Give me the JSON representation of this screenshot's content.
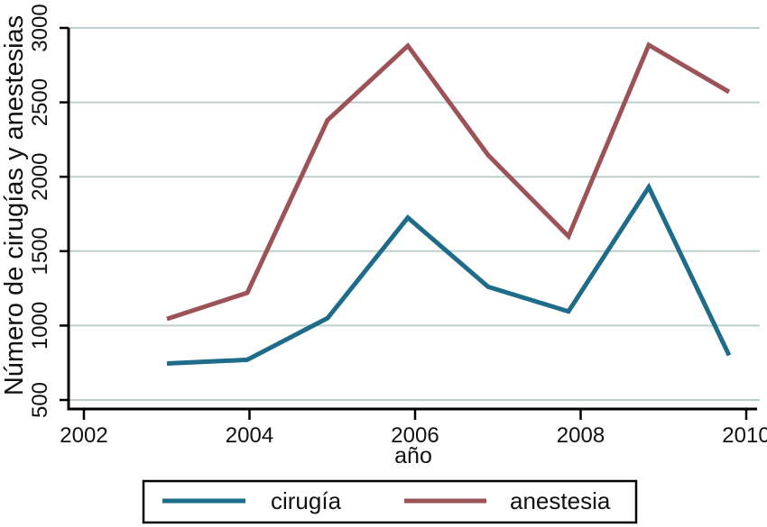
{
  "chart_data": {
    "type": "line",
    "title": "",
    "xlabel": "año",
    "ylabel": "Número de cirugías y anestesias",
    "x": [
      2003,
      2004,
      2005,
      2006,
      2007,
      2008,
      2009,
      2010
    ],
    "series": [
      {
        "name": "cirugía",
        "color": "#1f6b8a",
        "values": [
          745,
          770,
          1050,
          1725,
          1260,
          1095,
          1930,
          800
        ]
      },
      {
        "name": "anestesia",
        "color": "#9c5358",
        "values": [
          1045,
          1220,
          2380,
          2880,
          2145,
          1600,
          2885,
          2570
        ]
      }
    ],
    "x_ticks": [
      2002,
      2004,
      2006,
      2008,
      2010
    ],
    "y_ticks": [
      500,
      1000,
      1500,
      2000,
      2500,
      3000
    ],
    "xlim": [
      2002,
      2010.3
    ],
    "ylim": [
      500,
      3000
    ],
    "grid": "horizontal-gridlines",
    "legend_position": "bottom",
    "colors": {
      "gridline": "#bdcfce",
      "axis": "#000000",
      "text": "#111111",
      "background": "#ffffff"
    }
  }
}
